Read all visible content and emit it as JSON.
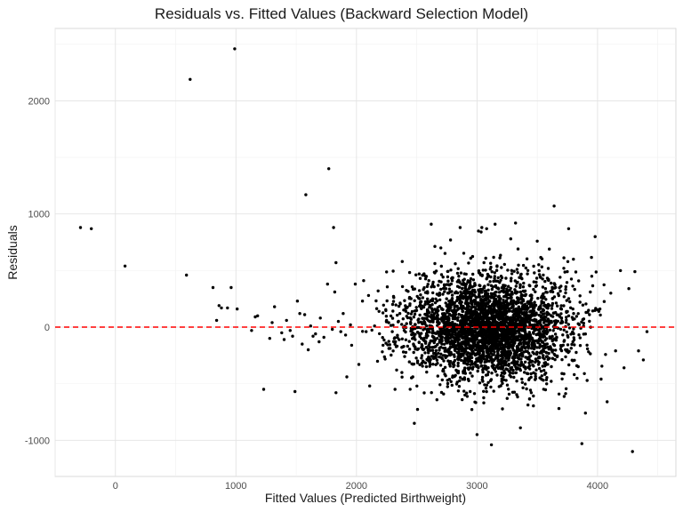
{
  "chart_data": {
    "type": "scatter",
    "title": "Residuals vs. Fitted Values (Backward Selection Model)",
    "xlabel": "Fitted Values (Predicted Birthweight)",
    "ylabel": "Residuals",
    "xlim": [
      -500,
      4650
    ],
    "ylim": [
      -1320,
      2640
    ],
    "x_ticks": [
      0,
      1000,
      2000,
      3000,
      4000
    ],
    "x_tick_labels": [
      "0",
      "1000",
      "2000",
      "3000",
      "4000"
    ],
    "y_ticks": [
      -1000,
      0,
      1000,
      2000
    ],
    "y_tick_labels": [
      "-1000",
      "0",
      "1000",
      "2000"
    ],
    "grid": true,
    "reference_line": {
      "y": 0,
      "color": "#ff0000",
      "style": "dashed"
    },
    "point_color": "#000000",
    "series": [
      {
        "points": [
          [
            -290,
            880
          ],
          [
            -200,
            870
          ],
          [
            80,
            540
          ],
          [
            590,
            460
          ],
          [
            620,
            2190
          ],
          [
            990,
            2460
          ],
          [
            810,
            350
          ],
          [
            860,
            190
          ],
          [
            880,
            170
          ],
          [
            840,
            60
          ],
          [
            930,
            170
          ],
          [
            960,
            350
          ],
          [
            1010,
            160
          ],
          [
            1130,
            -30
          ],
          [
            1160,
            90
          ],
          [
            1180,
            100
          ],
          [
            1230,
            -550
          ],
          [
            1280,
            -100
          ],
          [
            1300,
            40
          ],
          [
            1320,
            180
          ],
          [
            1380,
            -50
          ],
          [
            1400,
            -110
          ],
          [
            1420,
            60
          ],
          [
            1450,
            -30
          ],
          [
            1470,
            -80
          ],
          [
            1490,
            -570
          ],
          [
            1510,
            230
          ],
          [
            1530,
            120
          ],
          [
            1550,
            -150
          ],
          [
            1570,
            110
          ],
          [
            1580,
            1170
          ],
          [
            1600,
            -200
          ],
          [
            1620,
            10
          ],
          [
            1640,
            -80
          ],
          [
            1660,
            -60
          ],
          [
            1690,
            -130
          ],
          [
            1700,
            80
          ],
          [
            1730,
            -90
          ],
          [
            1760,
            380
          ],
          [
            1770,
            1400
          ],
          [
            1800,
            -20
          ],
          [
            1810,
            880
          ],
          [
            1820,
            310
          ],
          [
            1830,
            570
          ],
          [
            1830,
            -580
          ],
          [
            1850,
            50
          ],
          [
            1870,
            -40
          ],
          [
            1890,
            120
          ],
          [
            1910,
            -70
          ],
          [
            1920,
            -440
          ],
          [
            1950,
            20
          ],
          [
            1960,
            -160
          ],
          [
            1990,
            380
          ],
          [
            2020,
            -330
          ],
          [
            2050,
            230
          ],
          [
            2080,
            -40
          ],
          [
            2100,
            280
          ],
          [
            2110,
            -520
          ],
          [
            2150,
            10
          ],
          [
            2180,
            320
          ],
          [
            2220,
            -160
          ],
          [
            2250,
            60
          ],
          [
            2300,
            200
          ],
          [
            2320,
            -550
          ],
          [
            2360,
            120
          ],
          [
            2380,
            580
          ],
          [
            2400,
            -260
          ],
          [
            2450,
            30
          ],
          [
            2480,
            -850
          ],
          [
            2520,
            470
          ],
          [
            2550,
            260
          ],
          [
            2580,
            -350
          ],
          [
            2620,
            910
          ],
          [
            2660,
            140
          ],
          [
            2700,
            700
          ],
          [
            2740,
            -430
          ],
          [
            2780,
            770
          ],
          [
            2820,
            560
          ],
          [
            2860,
            880
          ],
          [
            2900,
            -600
          ],
          [
            2940,
            280
          ],
          [
            3000,
            -950
          ],
          [
            3040,
            880
          ],
          [
            3080,
            870
          ],
          [
            3120,
            -1040
          ],
          [
            3150,
            910
          ],
          [
            3200,
            450
          ],
          [
            3250,
            -630
          ],
          [
            3280,
            780
          ],
          [
            3320,
            920
          ],
          [
            3360,
            -890
          ],
          [
            3400,
            320
          ],
          [
            3450,
            -580
          ],
          [
            3500,
            760
          ],
          [
            3550,
            -470
          ],
          [
            3600,
            690
          ],
          [
            3640,
            1070
          ],
          [
            3680,
            -720
          ],
          [
            3720,
            520
          ],
          [
            3760,
            870
          ],
          [
            3800,
            600
          ],
          [
            3840,
            -350
          ],
          [
            3870,
            -1030
          ],
          [
            3900,
            -760
          ],
          [
            3940,
            310
          ],
          [
            3980,
            800
          ],
          [
            4020,
            160
          ],
          [
            4080,
            -660
          ],
          [
            4110,
            300
          ],
          [
            4150,
            -210
          ],
          [
            4190,
            500
          ],
          [
            4220,
            -360
          ],
          [
            4260,
            340
          ],
          [
            4290,
            -1100
          ],
          [
            4310,
            490
          ],
          [
            4340,
            -210
          ],
          [
            4380,
            -290
          ],
          [
            4410,
            -40
          ]
        ]
      }
    ],
    "generated_cluster": {
      "count": 3400,
      "x_mean": 3100,
      "x_sd": 340,
      "y_mean": 0,
      "y_sd": 230,
      "x_range": [
        2050,
        4100
      ],
      "y_range": [
        -880,
        900
      ],
      "seed": 17
    }
  }
}
